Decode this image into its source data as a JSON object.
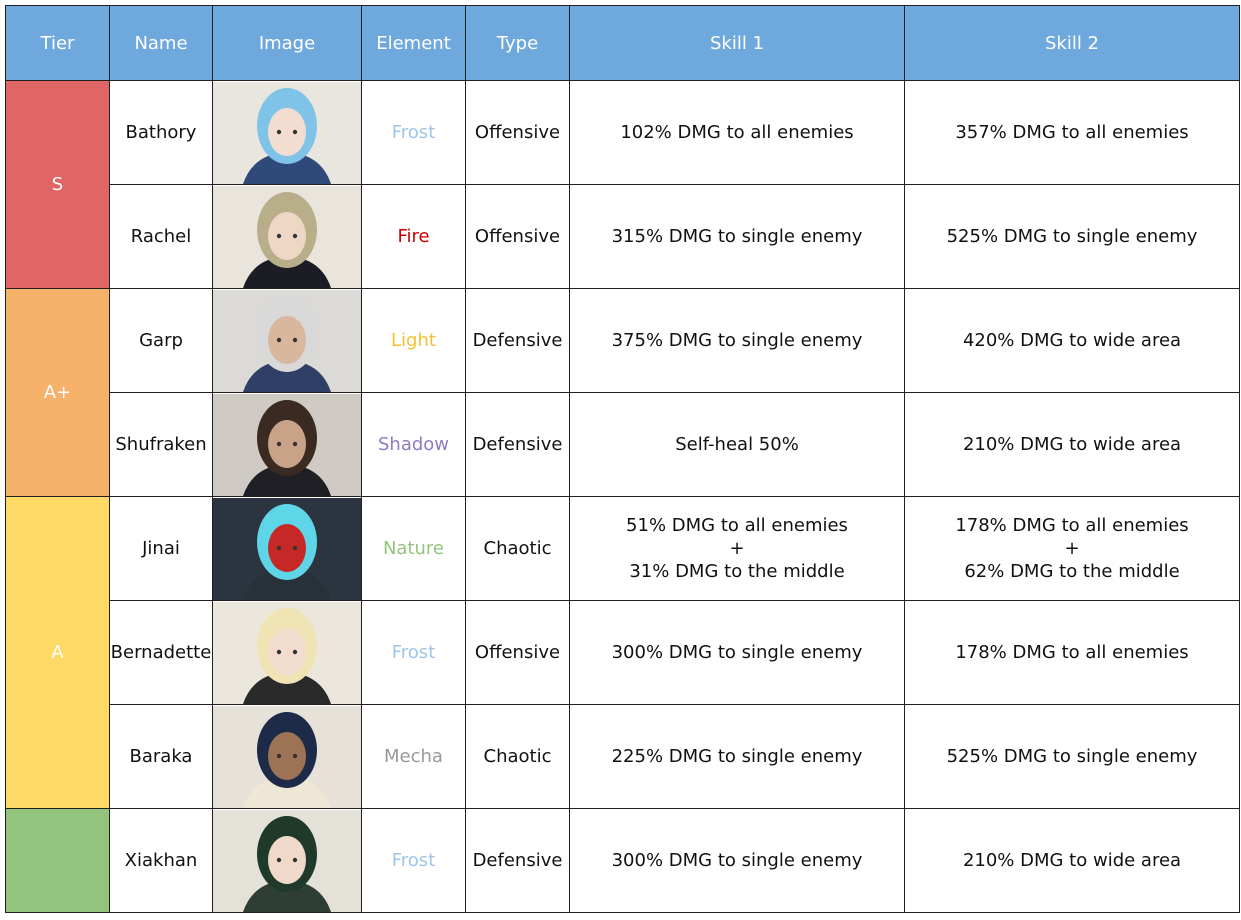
{
  "headers": [
    "Tier",
    "Name",
    "Image",
    "Element",
    "Type",
    "Skill 1",
    "Skill 2"
  ],
  "tiers": [
    {
      "label": "S",
      "color": "#e06666"
    },
    {
      "label": "A+",
      "color": "#f6b26b"
    },
    {
      "label": "A",
      "color": "#ffd966"
    },
    {
      "label": "",
      "color": "#93c47d"
    }
  ],
  "element_colors": {
    "Frost": "#9fc5e8",
    "Fire": "#cc0000",
    "Light": "#f1c232",
    "Shadow": "#8e7cc3",
    "Nature": "#93c47d",
    "Mecha": "#999999"
  },
  "rows": [
    {
      "name": "Bathory",
      "image_icon": "frost-elf-portrait",
      "element": "Frost",
      "type": "Offensive",
      "skill1": [
        "102% DMG to all enemies"
      ],
      "skill2": [
        "357% DMG to all enemies"
      ]
    },
    {
      "name": "Rachel",
      "image_icon": "fire-hero-portrait",
      "element": "Fire",
      "type": "Offensive",
      "skill1": [
        "315% DMG to single enemy"
      ],
      "skill2": [
        "525% DMG to single enemy"
      ]
    },
    {
      "name": "Garp",
      "image_icon": "old-warrior-portrait",
      "element": "Light",
      "type": "Defensive",
      "skill1": [
        "375% DMG to single enemy"
      ],
      "skill2": [
        "420% DMG to wide area"
      ]
    },
    {
      "name": "Shufraken",
      "image_icon": "bearded-warrior-portrait",
      "element": "Shadow",
      "type": "Defensive",
      "skill1": [
        "Self-heal 50%"
      ],
      "skill2": [
        "210% DMG to wide area"
      ]
    },
    {
      "name": "Jinai",
      "image_icon": "masked-creature-portrait",
      "element": "Nature",
      "type": "Chaotic",
      "skill1": [
        "51% DMG to all enemies",
        "+",
        "31% DMG to the middle"
      ],
      "skill2": [
        "178% DMG to all enemies",
        "+",
        "62% DMG to the middle"
      ]
    },
    {
      "name": "Bernadette",
      "image_icon": "blonde-mage-portrait",
      "element": "Frost",
      "type": "Offensive",
      "skill1": [
        "300% DMG to single enemy"
      ],
      "skill2": [
        "178% DMG to all enemies"
      ]
    },
    {
      "name": "Baraka",
      "image_icon": "dark-haired-hero-portrait",
      "element": "Mecha",
      "type": "Chaotic",
      "skill1": [
        "225% DMG to single enemy"
      ],
      "skill2": [
        "525% DMG to single enemy"
      ]
    },
    {
      "name": "Xiakhan",
      "image_icon": "green-haired-elf-portrait",
      "element": "Frost",
      "type": "Defensive",
      "skill1": [
        "300% DMG to single enemy"
      ],
      "skill2": [
        "210% DMG to wide area"
      ]
    }
  ]
}
